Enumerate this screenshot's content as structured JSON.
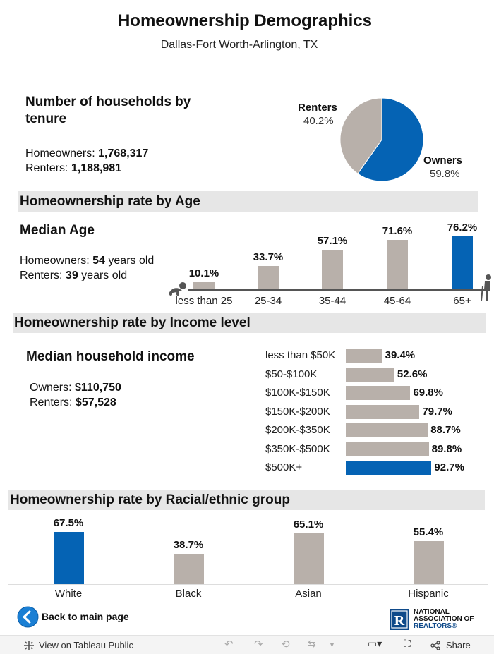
{
  "header": {
    "title": "Homeownership Demographics",
    "subtitle": "Dallas-Fort Worth-Arlington, TX"
  },
  "tenure": {
    "heading_line1": "Number of households by",
    "heading_line2": "tenure",
    "owners_label": "Homeowners: ",
    "owners_value": "1,768,317",
    "renters_label": "Renters: ",
    "renters_value": "1,188,981",
    "pie": {
      "renters_name": "Renters",
      "renters_pct": "40.2%",
      "owners_name": "Owners",
      "owners_pct": "59.8%"
    }
  },
  "age": {
    "section_title": "Homeownership rate by Age",
    "heading": "Median Age",
    "owners_label": "Homeowners: ",
    "owners_value": "54",
    "owners_suffix": " years old",
    "renters_label": "Renters: ",
    "renters_value": "39",
    "renters_suffix": " years old"
  },
  "income": {
    "section_title": "Homeownership rate by Income level",
    "heading": "Median household income",
    "owners_label": "Owners: ",
    "owners_value": "$110,750",
    "renters_label": "Renters: ",
    "renters_value": "$57,528"
  },
  "race": {
    "section_title": "Homeownership rate by Racial/ethnic group"
  },
  "colors": {
    "highlight": "#0563b4",
    "neutral": "#b8b0aa",
    "section_bg": "#e6e6e6"
  },
  "chart_data": [
    {
      "type": "pie",
      "categories": [
        "Owners",
        "Renters"
      ],
      "values": [
        59.8,
        40.2
      ],
      "colors": [
        "#0563b4",
        "#b8b0aa"
      ]
    },
    {
      "type": "bar",
      "categories": [
        "less than 25",
        "25-34",
        "35-44",
        "45-64",
        "65+"
      ],
      "values": [
        10.1,
        33.7,
        57.1,
        71.6,
        76.2
      ],
      "labels": [
        "10.1%",
        "33.7%",
        "57.1%",
        "71.6%",
        "76.2%"
      ],
      "highlight_index": 4,
      "ylim": [
        0,
        80
      ]
    },
    {
      "type": "bar",
      "orientation": "horizontal",
      "categories": [
        "less than $50K",
        "$50-$100K",
        "$100K-$150K",
        "$150K-$200K",
        "$200K-$350K",
        "$350K-$500K",
        "$500K+"
      ],
      "values": [
        39.4,
        52.6,
        69.8,
        79.7,
        88.7,
        89.8,
        92.7
      ],
      "labels": [
        "39.4%",
        "52.6%",
        "69.8%",
        "79.7%",
        "88.7%",
        "89.8%",
        "92.7%"
      ],
      "highlight_index": 6,
      "xlim": [
        0,
        100
      ]
    },
    {
      "type": "bar",
      "categories": [
        "White",
        "Black",
        "Asian",
        "Hispanic"
      ],
      "values": [
        67.5,
        38.7,
        65.1,
        55.4
      ],
      "labels": [
        "67.5%",
        "38.7%",
        "65.1%",
        "55.4%"
      ],
      "highlight_index": 0,
      "ylim": [
        0,
        70
      ]
    }
  ],
  "nav": {
    "back_label": "Back to main page"
  },
  "logo": {
    "line1": "NATIONAL",
    "line2": "ASSOCIATION OF",
    "line3": "REALTORS®"
  },
  "footer": {
    "view_label": "View on Tableau Public",
    "share_label": "Share"
  }
}
